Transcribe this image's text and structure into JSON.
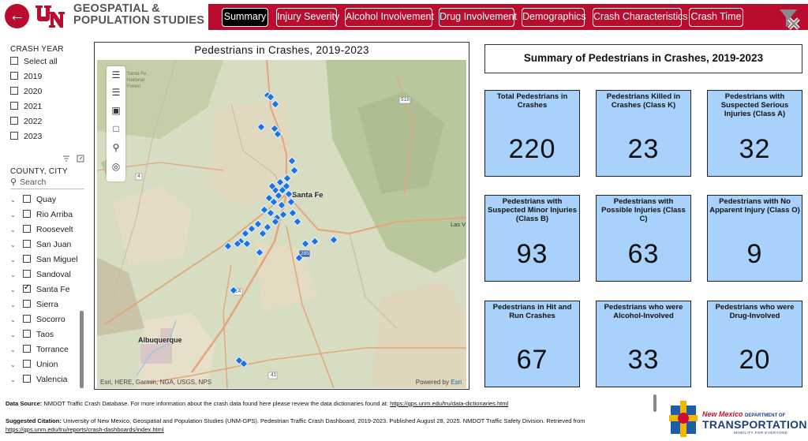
{
  "header": {
    "org_line1": "GEOSPATIAL &",
    "org_line2": "POPULATION STUDIES",
    "tabs": [
      "Summary",
      "Injury Severity",
      "Alcohol Involvement",
      "Drug Involvement",
      "Demographics",
      "Crash Characteristics",
      "Crash Time"
    ],
    "active_tab": "Summary"
  },
  "crash_year": {
    "title": "CRASH YEAR",
    "options": [
      "Select all",
      "2019",
      "2020",
      "2021",
      "2022",
      "2023"
    ]
  },
  "county": {
    "title": "COUNTY, CITY",
    "search_placeholder": "Search",
    "items": [
      {
        "label": "Quay",
        "checked": false
      },
      {
        "label": "Rio Arriba",
        "checked": false
      },
      {
        "label": "Roosevelt",
        "checked": false
      },
      {
        "label": "San Juan",
        "checked": false
      },
      {
        "label": "San Miguel",
        "checked": false
      },
      {
        "label": "Sandoval",
        "checked": false
      },
      {
        "label": "Santa Fe",
        "checked": true
      },
      {
        "label": "Sierra",
        "checked": false
      },
      {
        "label": "Socorro",
        "checked": false
      },
      {
        "label": "Taos",
        "checked": false
      },
      {
        "label": "Torrance",
        "checked": false
      },
      {
        "label": "Union",
        "checked": false
      },
      {
        "label": "Valencia",
        "checked": false
      }
    ]
  },
  "map": {
    "title": "Pedestrians in Crashes, 2019-2023",
    "labels": {
      "santa_fe": "Santa Fe",
      "albuquerque": "Albuquerque",
      "las_vegas": "Las V",
      "santa_fe_nf": "Santa Fe National Forest"
    },
    "road_labels": [
      "518",
      "4",
      "14",
      "285",
      "41"
    ],
    "attribution": "Esri, HERE, Garmin, NGA, USGS, NPS",
    "powered_by": "Powered by",
    "powered_brand": "Esri"
  },
  "summary": {
    "title": "Summary of Pedestrians in Crashes, 2019-2023",
    "cards": [
      {
        "label": "Total Pedestrians in Crashes",
        "value": "220"
      },
      {
        "label": "Pedestrians Killed in Crashes (Class K)",
        "value": "23"
      },
      {
        "label": "Pedestrians with Suspected Serious Injuries (Class A)",
        "value": "32"
      },
      {
        "label": "Pedestrians with Suspected Minor Injuries (Class B)",
        "value": "93"
      },
      {
        "label": "Pedestrians with Possible Injuries (Class C)",
        "value": "63"
      },
      {
        "label": "Pedestrians with No Apparent Injury (Class O)",
        "value": "9"
      },
      {
        "label": "Pedestrians in Hit and Run Crashes",
        "value": "67"
      },
      {
        "label": "Pedestrians who were Alcohol-Involved",
        "value": "33"
      },
      {
        "label": "Pedestrians who were Drug-Involved",
        "value": "20"
      }
    ]
  },
  "footer": {
    "source_label": "Data Source:",
    "source_text": "NMDOT Traffic Crash Database. For more information about the crash data found here please review the data dictionaries found at:",
    "source_link": "https://gps.unm.edu/tru/data-dictionaries.html",
    "citation_label": "Suggested Citation:",
    "citation_text": "University of New Mexico, Geospatial and Population Studies (UNM-GPS). Pedestrian Traffic Crash Dashboard, 2019-2023. Published August 28, 2025. NMDOT Traffic Safety Division. Retrieved from",
    "citation_link": "https://gps.unm.edu/tru/reports/crash-dashboards/index.html",
    "nmdot_line1": "New Mexico",
    "nmdot_line1b": "DEPARTMENT OF",
    "nmdot_line2": "TRANSPORTATION",
    "nmdot_line3": "MOBILITY FOR EVERYONE"
  },
  "colors": {
    "brand_red": "#ba0c2f",
    "card_blue": "#a8d1fc",
    "marker_blue": "#1a73e8"
  }
}
